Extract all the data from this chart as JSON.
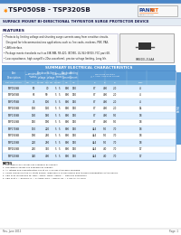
{
  "title": "TSP050SB - TSP320SB",
  "subtitle": "SURFACE MOUNT BI-DIRECTIONAL THYRISTOR SURGE PROTECTOR DEVICE",
  "brand_pann": "PANN",
  "brand_rit": "RIT",
  "features_title": "FEATURES",
  "feature_lines": [
    "Protects by limiting voltage and shunting surge currents away from sensitive circuits.",
    "Designed for telecommunications applications such as line cards, modems, PBX, PAX,",
    "LAN interface.",
    "Package meets standards such as EIA-98B, RS-420, IEC950, UL-94-HB(V0), FCC part-68.",
    "Low capacitance, high surge(8 x 20us waveform), precise voltage limiting, Long life."
  ],
  "package_label": "SMB/DO-214AA",
  "table_header": "SUMMARY ELECTRICAL CHARACTERISTICS",
  "col_header_bg": "#5b9bd5",
  "col_subheader_bg": "#7ab3dd",
  "col_headers_row1": [
    "Repetitive\nPeak Off-State\nVoltage\n(VDRM)",
    "Breakover\nvoltage",
    "On-State\nvoltage",
    "Repetitive\nPeak Off-State\nCurrent\n(IDRM)",
    "Breakover\nCurrent",
    "Holding\nCurrent",
    "Maximum On-State\n@ 1 Amp - rms or dc current",
    ""
  ],
  "col_headers_row2": [
    "Part Description",
    "Min    Typ    Max",
    "Min    Max",
    "Min    Max",
    "5uA",
    "mA",
    "mA",
    "1A    3A    5A",
    "Peak"
  ],
  "col_headers_row3": [
    "",
    "Volts",
    "Volts",
    "Volts",
    "uA",
    "mA",
    "mA",
    "Amps",
    "Amps"
  ],
  "rows": [
    [
      "TSP050SB",
      "50",
      "70",
      "5",
      "5",
      "800",
      "150",
      "87",
      "400",
      "2.0",
      "4"
    ],
    [
      "TSP065SB",
      "65",
      "90",
      "5",
      "5",
      "800",
      "150",
      "87",
      "400",
      "2.0",
      "4"
    ],
    [
      "TSP075SB",
      "75",
      "100",
      "5",
      "5",
      "800",
      "150",
      "87",
      "400",
      "2.0",
      "4"
    ],
    [
      "TSP100SB",
      "100",
      "130",
      "5",
      "5",
      "800",
      "150",
      "87",
      "400",
      "2.0",
      "14"
    ],
    [
      "TSP130SB",
      "130",
      "160",
      "5",
      "5",
      "800",
      "150",
      "87",
      "400",
      "5.0",
      "18"
    ],
    [
      "TSP150SB",
      "150",
      "190",
      "5",
      "5",
      "800",
      "150",
      "87",
      "400",
      "5.0",
      "18"
    ],
    [
      "TSP170SB",
      "170",
      "220",
      "5",
      "5",
      "800",
      "150",
      "444",
      "5.0",
      "7.0",
      "18"
    ],
    [
      "TSP190SB",
      "190",
      "260",
      "5",
      "5",
      "800",
      "150",
      "444",
      "5.0",
      "7.0",
      "18"
    ],
    [
      "TSP220SB",
      "220",
      "280",
      "5",
      "5",
      "800",
      "150",
      "444",
      "5.0",
      "7.0",
      "18"
    ],
    [
      "TSP250SB",
      "250",
      "350",
      "5",
      "5",
      "800",
      "150",
      "444",
      "4.0",
      "7.0",
      "17"
    ],
    [
      "TSP320SB",
      "320",
      "400",
      "5",
      "5",
      "800",
      "150",
      "444",
      "4.0",
      "7.0",
      "17"
    ]
  ],
  "note_lines": [
    "NOTES",
    "1. Specified in any values are available by request.",
    "2. Specified in values are available by request.",
    "3. All ratings and characteristics are at 25°C unless otherwise specified.",
    "4. VDRM applies for the off-state device. IDRM which occurs during and thermal propagation of the device.",
    "5. VBO is as referenced to: VBO= VBO1, VBO2=VBO3=... Detailed description",
    "6. VBO is at T = 80Vrms, IT = 5 Amps, max = RMSₘₛ, R1 = 1 KΩ AC-AC cycle"
  ],
  "bg_color": "#ffffff",
  "header_line_color": "#cccccc",
  "table_title_bg": "#5b9bd5",
  "row_even_color": "#ddeeff",
  "row_odd_color": "#ffffff",
  "right_tab_color": "#5b9bd5",
  "footer_line_color": "#aaaaaa",
  "date_text": "Rev. June 2011",
  "page_text": "Page: 1",
  "title_color": "#1a1a2e",
  "subtitle_color": "#1a1a4e",
  "icon_color": "#ff8800"
}
